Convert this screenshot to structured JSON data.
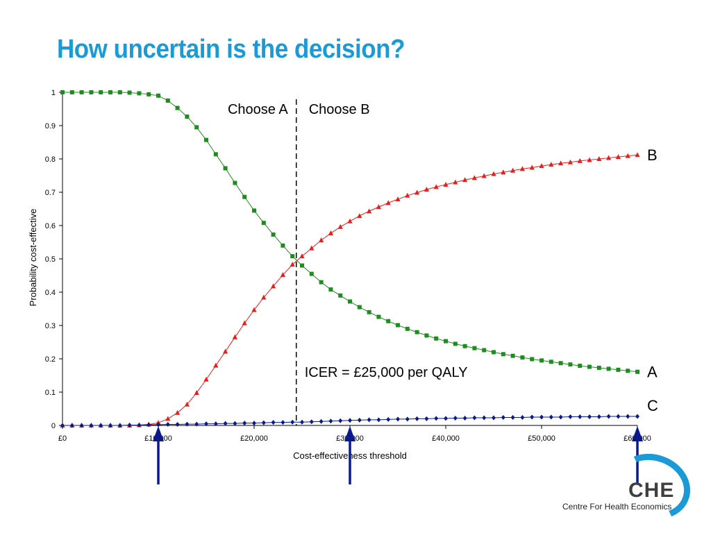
{
  "title": "How uncertain is the decision?",
  "chart_data": {
    "type": "line",
    "xlabel": "Cost-effectiveness threshold",
    "ylabel": "Probability cost-effective",
    "xlim": [
      0,
      60000
    ],
    "ylim": [
      0,
      1
    ],
    "x_ticks": [
      0,
      10000,
      20000,
      30000,
      40000,
      50000,
      60000
    ],
    "x_tick_labels": [
      "£0",
      "£10,000",
      "£20,000",
      "£30,000",
      "£40,000",
      "£50,000",
      "£60,000"
    ],
    "y_ticks": [
      0,
      0.1,
      0.2,
      0.3,
      0.4,
      0.5,
      0.6,
      0.7,
      0.8,
      0.9,
      1
    ],
    "y_tick_labels": [
      "0",
      "0.1",
      "0.2",
      "0.3",
      "0.4",
      "0.5",
      "0.6",
      "0.7",
      "0.8",
      "0.9",
      "1"
    ],
    "grid": false,
    "x": [
      0,
      1000,
      2000,
      3000,
      4000,
      5000,
      6000,
      7000,
      8000,
      9000,
      10000,
      11000,
      12000,
      13000,
      14000,
      15000,
      16000,
      17000,
      18000,
      19000,
      20000,
      21000,
      22000,
      23000,
      24000,
      25000,
      26000,
      27000,
      28000,
      29000,
      30000,
      31000,
      32000,
      33000,
      34000,
      35000,
      36000,
      37000,
      38000,
      39000,
      40000,
      41000,
      42000,
      43000,
      44000,
      45000,
      46000,
      47000,
      48000,
      49000,
      50000,
      51000,
      52000,
      53000,
      54000,
      55000,
      56000,
      57000,
      58000,
      59000,
      60000
    ],
    "series": [
      {
        "name": "A",
        "color": "#1e8c1e",
        "marker": "square",
        "values": [
          1,
          1,
          1,
          1,
          1,
          1,
          1,
          0.999,
          0.997,
          0.994,
          0.99,
          0.975,
          0.953,
          0.927,
          0.895,
          0.857,
          0.814,
          0.772,
          0.728,
          0.686,
          0.645,
          0.608,
          0.573,
          0.54,
          0.508,
          0.48,
          0.455,
          0.43,
          0.408,
          0.39,
          0.372,
          0.355,
          0.34,
          0.326,
          0.313,
          0.301,
          0.29,
          0.28,
          0.27,
          0.261,
          0.253,
          0.245,
          0.238,
          0.232,
          0.226,
          0.22,
          0.214,
          0.209,
          0.204,
          0.199,
          0.195,
          0.191,
          0.187,
          0.183,
          0.179,
          0.176,
          0.173,
          0.17,
          0.167,
          0.164,
          0.161
        ]
      },
      {
        "name": "B",
        "color": "#e32020",
        "marker": "triangle",
        "values": [
          0,
          0,
          0,
          0,
          0,
          0,
          0,
          0,
          0.001,
          0.003,
          0.008,
          0.02,
          0.038,
          0.063,
          0.098,
          0.138,
          0.18,
          0.222,
          0.265,
          0.307,
          0.347,
          0.384,
          0.418,
          0.452,
          0.483,
          0.508,
          0.532,
          0.556,
          0.577,
          0.596,
          0.613,
          0.629,
          0.643,
          0.656,
          0.668,
          0.679,
          0.69,
          0.699,
          0.708,
          0.716,
          0.723,
          0.73,
          0.737,
          0.743,
          0.749,
          0.755,
          0.76,
          0.765,
          0.77,
          0.774,
          0.779,
          0.783,
          0.787,
          0.79,
          0.794,
          0.797,
          0.8,
          0.803,
          0.806,
          0.809,
          0.812
        ]
      },
      {
        "name": "C",
        "color": "#0a1a8c",
        "marker": "diamond",
        "values": [
          0,
          0,
          0,
          0,
          0,
          0,
          0,
          0.001,
          0.001,
          0.002,
          0.002,
          0.003,
          0.003,
          0.004,
          0.004,
          0.005,
          0.005,
          0.006,
          0.006,
          0.007,
          0.007,
          0.008,
          0.009,
          0.009,
          0.01,
          0.01,
          0.011,
          0.012,
          0.013,
          0.014,
          0.015,
          0.016,
          0.017,
          0.017,
          0.018,
          0.019,
          0.019,
          0.02,
          0.02,
          0.021,
          0.021,
          0.022,
          0.022,
          0.023,
          0.023,
          0.023,
          0.024,
          0.024,
          0.024,
          0.025,
          0.025,
          0.025,
          0.025,
          0.026,
          0.026,
          0.026,
          0.026,
          0.027,
          0.027,
          0.027,
          0.027
        ]
      }
    ],
    "threshold_line_x": 24400,
    "annotations": {
      "left_region": "Choose A",
      "right_region": "Choose B",
      "icer": "ICER = £25,000 per QALY"
    },
    "arrows_at_x": [
      10000,
      30000,
      60000
    ],
    "arrow_color": "#0a1a8c"
  },
  "logo": {
    "name": "CHE",
    "subtitle": "Centre For Health Economics",
    "color": "#1a9ad6"
  }
}
